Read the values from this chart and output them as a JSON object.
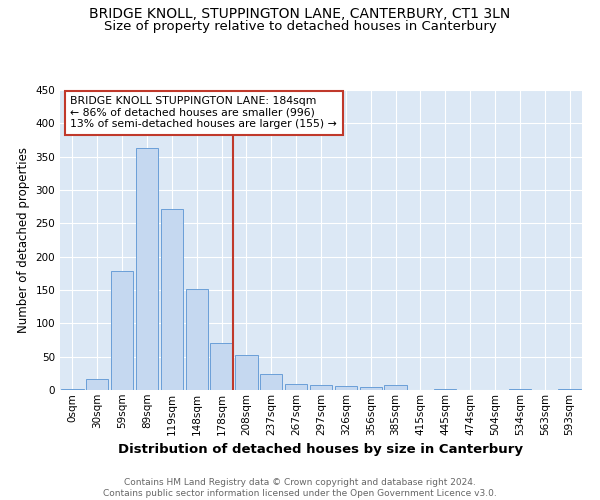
{
  "title": "BRIDGE KNOLL, STUPPINGTON LANE, CANTERBURY, CT1 3LN",
  "subtitle": "Size of property relative to detached houses in Canterbury",
  "xlabel": "Distribution of detached houses by size in Canterbury",
  "ylabel": "Number of detached properties",
  "bar_labels": [
    "0sqm",
    "30sqm",
    "59sqm",
    "89sqm",
    "119sqm",
    "148sqm",
    "178sqm",
    "208sqm",
    "237sqm",
    "267sqm",
    "297sqm",
    "326sqm",
    "356sqm",
    "385sqm",
    "415sqm",
    "445sqm",
    "474sqm",
    "504sqm",
    "534sqm",
    "563sqm",
    "593sqm"
  ],
  "bar_values": [
    2,
    17,
    178,
    363,
    271,
    152,
    70,
    53,
    24,
    9,
    7,
    6,
    5,
    7,
    0,
    2,
    0,
    0,
    2,
    0,
    2
  ],
  "bar_color": "#c5d8f0",
  "bar_edge_color": "#6a9fd8",
  "vline_color": "#c0392b",
  "annotation_text": "BRIDGE KNOLL STUPPINGTON LANE: 184sqm\n← 86% of detached houses are smaller (996)\n13% of semi-detached houses are larger (155) →",
  "annotation_box_color": "#ffffff",
  "annotation_box_edge": "#c0392b",
  "footer": "Contains HM Land Registry data © Crown copyright and database right 2024.\nContains public sector information licensed under the Open Government Licence v3.0.",
  "ylim": [
    0,
    450
  ],
  "plot_bg": "#dce8f5",
  "title_fontsize": 10,
  "subtitle_fontsize": 9.5,
  "xlabel_fontsize": 9.5,
  "ylabel_fontsize": 8.5,
  "tick_fontsize": 7.5,
  "footer_fontsize": 6.5
}
